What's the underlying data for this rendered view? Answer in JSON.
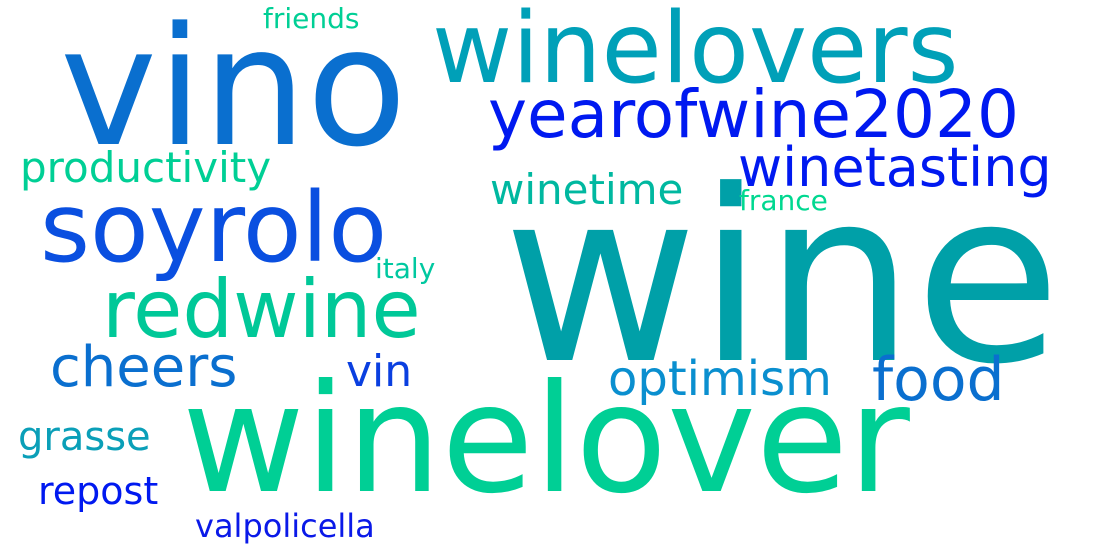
{
  "colors": {
    "background": "#ffffff",
    "teal": "#00a0a8",
    "royal_blue": "#0a6fcf",
    "mint": "#00cf95",
    "blue_violet": "#0a3fe0",
    "bright_blue": "#0019f0",
    "sea_green": "#00b0a0"
  },
  "words": {
    "wine": {
      "text": "wine",
      "color": "#00a0a8"
    },
    "vino": {
      "text": "vino",
      "color": "#0a6fcf"
    },
    "winelover": {
      "text": "winelover",
      "color": "#00cf95"
    },
    "winelovers": {
      "text": "winelovers",
      "color": "#00a0b8"
    },
    "soyrolo": {
      "text": "soyrolo",
      "color": "#0a4fe0"
    },
    "redwine": {
      "text": "redwine",
      "color": "#00c898"
    },
    "yearofwine2020": {
      "text": "yearofwine2020",
      "color": "#0019f0"
    },
    "winetasting": {
      "text": "winetasting",
      "color": "#0019f0"
    },
    "cheers": {
      "text": "cheers",
      "color": "#0a6fcf"
    },
    "food": {
      "text": "food",
      "color": "#0a6fcf"
    },
    "optimism": {
      "text": "optimism",
      "color": "#0a8fcf"
    },
    "productivity": {
      "text": "productivity",
      "color": "#00cf95"
    },
    "winetime": {
      "text": "winetime",
      "color": "#00b8a0"
    },
    "vin": {
      "text": "vin",
      "color": "#0a3fe0"
    },
    "grasse": {
      "text": "grasse",
      "color": "#0a9fb8"
    },
    "repost": {
      "text": "repost",
      "color": "#0019f0"
    },
    "valpolicella": {
      "text": "valpolicella",
      "color": "#0a19e8"
    },
    "italy": {
      "text": "italy",
      "color": "#00c8a0"
    },
    "france": {
      "text": "france",
      "color": "#00d890"
    },
    "friends": {
      "text": "friends",
      "color": "#00cf95"
    }
  }
}
